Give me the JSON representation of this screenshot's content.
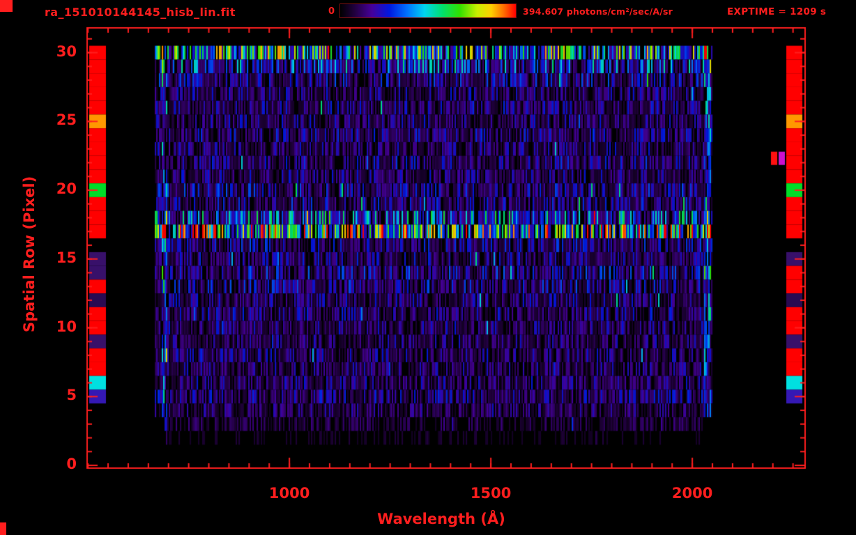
{
  "header": {
    "filename": "ra_151010144145_hisb_lin.fit",
    "exptime_label": "EXPTIME = 1209 s",
    "colorbar_min_label": "0",
    "colorbar_max_label": "394.607 photons/cm²/sec/A/sr"
  },
  "chart_data": {
    "type": "heatmap",
    "title": "ra_151010144145_hisb_lin.fit",
    "xlabel": "Wavelength (Å)",
    "ylabel": "Spatial Row (Pixel)",
    "xlim": [
      498,
      2280
    ],
    "ylim": [
      -0.2,
      31.8
    ],
    "xticks": [
      {
        "value": 1000,
        "label": "1000"
      },
      {
        "value": 1500,
        "label": "1500"
      },
      {
        "value": 2000,
        "label": "2000"
      }
    ],
    "x_minor_step": 50,
    "yticks": [
      {
        "value": 0,
        "label": "0"
      },
      {
        "value": 5,
        "label": "5"
      },
      {
        "value": 10,
        "label": "10"
      },
      {
        "value": 15,
        "label": "15"
      },
      {
        "value": 20,
        "label": "20"
      },
      {
        "value": 25,
        "label": "25"
      },
      {
        "value": 30,
        "label": "30"
      }
    ],
    "y_minor_step": 1,
    "colorbar": {
      "min": 0,
      "max": 394.607,
      "units": "photons/cm²/sec/A/sr"
    },
    "colormap_stops": [
      [
        0.0,
        "#000000"
      ],
      [
        0.08,
        "#20003c"
      ],
      [
        0.18,
        "#46009a"
      ],
      [
        0.28,
        "#0018e0"
      ],
      [
        0.38,
        "#0070ff"
      ],
      [
        0.48,
        "#00d4f0"
      ],
      [
        0.58,
        "#00e070"
      ],
      [
        0.68,
        "#30e000"
      ],
      [
        0.78,
        "#c8f000"
      ],
      [
        0.86,
        "#ffd000"
      ],
      [
        0.93,
        "#ff7000"
      ],
      [
        1.0,
        "#ff0000"
      ]
    ],
    "data_wavelength_range": [
      666,
      2050
    ],
    "row_levels": [
      {
        "row": 30,
        "level": 0.78
      },
      {
        "row": 29,
        "level": 0.5
      },
      {
        "row": 28,
        "level": 0.3
      },
      {
        "row": 27,
        "level": 0.24
      },
      {
        "row": 26,
        "level": 0.26
      },
      {
        "row": 25,
        "level": 0.24
      },
      {
        "row": 24,
        "level": 0.28
      },
      {
        "row": 23,
        "level": 0.24
      },
      {
        "row": 22,
        "level": 0.28
      },
      {
        "row": 21,
        "level": 0.24
      },
      {
        "row": 20,
        "level": 0.3
      },
      {
        "row": 19,
        "level": 0.28
      },
      {
        "row": 18,
        "level": 0.55
      },
      {
        "row": 17,
        "level": 0.97
      },
      {
        "row": 16,
        "level": 0.3
      },
      {
        "row": 15,
        "level": 0.26
      },
      {
        "row": 14,
        "level": 0.32
      },
      {
        "row": 13,
        "level": 0.3
      },
      {
        "row": 12,
        "level": 0.24
      },
      {
        "row": 11,
        "level": 0.26
      },
      {
        "row": 10,
        "level": 0.24
      },
      {
        "row": 9,
        "level": 0.22
      },
      {
        "row": 8,
        "level": 0.24
      },
      {
        "row": 7,
        "level": 0.22
      },
      {
        "row": 6,
        "level": 0.24
      },
      {
        "row": 5,
        "level": 0.26
      },
      {
        "row": 4,
        "level": 0.2
      },
      {
        "row": 3,
        "level": 0.14
      },
      {
        "row": 2,
        "level": 0.07
      }
    ],
    "bright_rows": [
      {
        "row": 17,
        "note": "bright emission streak (cyan-green) across full wavelength range"
      },
      {
        "row": 30,
        "note": "bright speckled top row"
      }
    ],
    "edge_strips": {
      "left": [
        {
          "row": 30,
          "color": "#ff0000"
        },
        {
          "row": 29,
          "color": "#ff0000"
        },
        {
          "row": 28,
          "color": "#ff0000"
        },
        {
          "row": 27,
          "color": "#ff0000"
        },
        {
          "row": 26,
          "color": "#ff0000"
        },
        {
          "row": 25,
          "color": "#ff9800"
        },
        {
          "row": 24,
          "color": "#ff0000"
        },
        {
          "row": 23,
          "color": "#ff0000"
        },
        {
          "row": 22,
          "color": "#ff0000"
        },
        {
          "row": 21,
          "color": "#ff0000"
        },
        {
          "row": 20,
          "color": "#00dc28"
        },
        {
          "row": 19,
          "color": "#ff0000"
        },
        {
          "row": 18,
          "color": "#ff0000"
        },
        {
          "row": 17,
          "color": "#ff0000"
        },
        {
          "row": 16,
          "color": "#000000"
        },
        {
          "row": 15,
          "color": "#38106a"
        },
        {
          "row": 14,
          "color": "#38106a"
        },
        {
          "row": 13,
          "color": "#ff0000"
        },
        {
          "row": 12,
          "color": "#2a0a52"
        },
        {
          "row": 11,
          "color": "#ff0000"
        },
        {
          "row": 10,
          "color": "#ff0000"
        },
        {
          "row": 9,
          "color": "#38106a"
        },
        {
          "row": 8,
          "color": "#ff0000"
        },
        {
          "row": 7,
          "color": "#ff0000"
        },
        {
          "row": 6,
          "color": "#00e0e0"
        },
        {
          "row": 5,
          "color": "#3418b4"
        },
        {
          "row": 4,
          "color": "#000000"
        }
      ],
      "right": [
        {
          "row": 30,
          "color": "#ff0000"
        },
        {
          "row": 29,
          "color": "#ff0000"
        },
        {
          "row": 28,
          "color": "#ff0000"
        },
        {
          "row": 27,
          "color": "#ff0000"
        },
        {
          "row": 26,
          "color": "#ff0000"
        },
        {
          "row": 25,
          "color": "#ff9800"
        },
        {
          "row": 24,
          "color": "#ff0000"
        },
        {
          "row": 23,
          "color": "#ff0000"
        },
        {
          "row": 22,
          "color": "#ff0000"
        },
        {
          "row": 21,
          "color": "#ff0000"
        },
        {
          "row": 20,
          "color": "#00dc28"
        },
        {
          "row": 19,
          "color": "#ff0000"
        },
        {
          "row": 18,
          "color": "#ff0000"
        },
        {
          "row": 17,
          "color": "#ff0000"
        },
        {
          "row": 16,
          "color": "#000000"
        },
        {
          "row": 15,
          "color": "#38106a"
        },
        {
          "row": 14,
          "color": "#ff0000"
        },
        {
          "row": 13,
          "color": "#ff0000"
        },
        {
          "row": 12,
          "color": "#2a0a52"
        },
        {
          "row": 11,
          "color": "#ff0000"
        },
        {
          "row": 10,
          "color": "#ff0000"
        },
        {
          "row": 9,
          "color": "#38106a"
        },
        {
          "row": 8,
          "color": "#ff0000"
        },
        {
          "row": 7,
          "color": "#ff0000"
        },
        {
          "row": 6,
          "color": "#00e0e0"
        },
        {
          "row": 5,
          "color": "#3418b4"
        },
        {
          "row": 4,
          "color": "#000000"
        }
      ],
      "right_outliers": [
        {
          "row": 22.3,
          "color": "#ff1010"
        },
        {
          "row": 22.3,
          "color": "#cc10cc"
        }
      ]
    },
    "noise_seed": 151010
  },
  "colors": {
    "background": "#000000",
    "axis": "#ff1e1e",
    "text": "#ff1e1e"
  }
}
